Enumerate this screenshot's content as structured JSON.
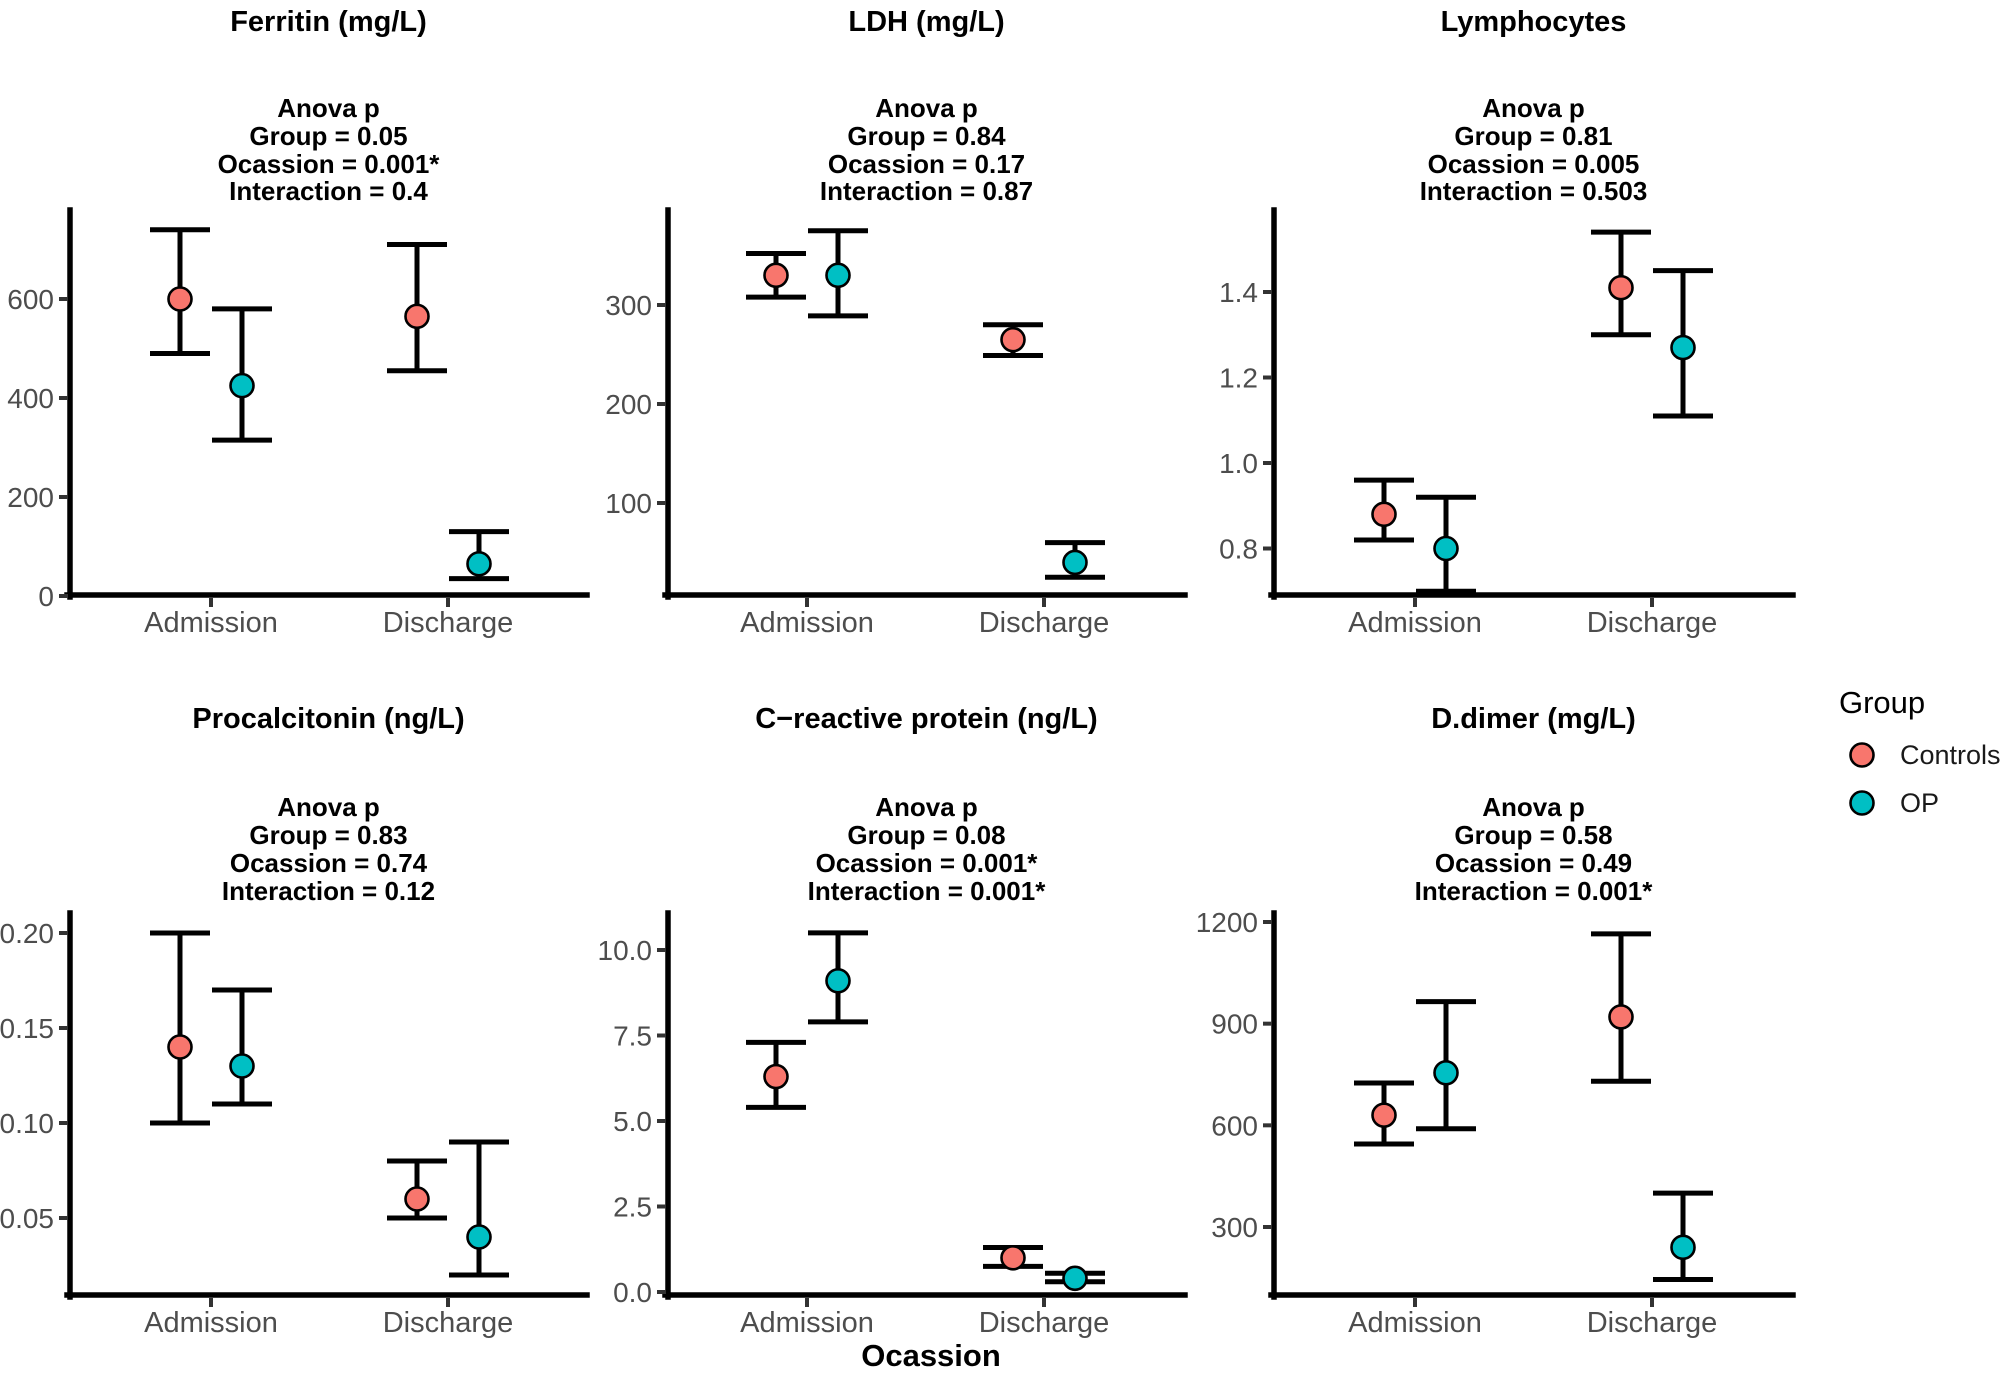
{
  "figure": {
    "background": "#FFFFFF",
    "x_axis_title": "Ocassion",
    "point_outline": "#000000",
    "legend": {
      "title": "Group",
      "position": "right",
      "entries": [
        {
          "label": "Controls",
          "color": "#F8766D"
        },
        {
          "label": "OP",
          "color": "#00BFC4"
        }
      ]
    }
  },
  "chart_data": [
    {
      "type": "scatter",
      "title": "Ferritin (mg/L)",
      "annotation": [
        "Anova p",
        "Group = 0.05",
        "Ocassion = 0.001*",
        "Interaction = 0.4"
      ],
      "categories": [
        "Admission",
        "Discharge"
      ],
      "ytick_labels": [
        "0",
        "200",
        "400",
        "600"
      ],
      "ytick_values": [
        0,
        200,
        400,
        600
      ],
      "ylim": [
        0,
        775
      ],
      "grid": false,
      "series": [
        {
          "name": "Controls",
          "color": "#F8766D",
          "points": [
            {
              "x": "Admission",
              "y": 600,
              "ymin": 490,
              "ymax": 740
            },
            {
              "x": "Discharge",
              "y": 565,
              "ymin": 455,
              "ymax": 710
            }
          ]
        },
        {
          "name": "OP",
          "color": "#00BFC4",
          "points": [
            {
              "x": "Admission",
              "y": 425,
              "ymin": 315,
              "ymax": 580
            },
            {
              "x": "Discharge",
              "y": 65,
              "ymin": 35,
              "ymax": 130
            }
          ]
        }
      ]
    },
    {
      "type": "scatter",
      "title": "LDH (mg/L)",
      "annotation": [
        "Anova p",
        "Group = 0.84",
        "Ocassion = 0.17",
        "Interaction = 0.87"
      ],
      "categories": [
        "Admission",
        "Discharge"
      ],
      "ytick_labels": [
        "100",
        "200",
        "300"
      ],
      "ytick_values": [
        100,
        200,
        300
      ],
      "ylim": [
        7,
        397
      ],
      "grid": false,
      "series": [
        {
          "name": "Controls",
          "color": "#F8766D",
          "points": [
            {
              "x": "Admission",
              "y": 330,
              "ymin": 308,
              "ymax": 352
            },
            {
              "x": "Discharge",
              "y": 265,
              "ymin": 249,
              "ymax": 280
            }
          ]
        },
        {
          "name": "OP",
          "color": "#00BFC4",
          "points": [
            {
              "x": "Admission",
              "y": 330,
              "ymin": 289,
              "ymax": 375
            },
            {
              "x": "Discharge",
              "y": 40,
              "ymin": 25,
              "ymax": 60
            }
          ]
        }
      ]
    },
    {
      "type": "scatter",
      "title": "Lymphocytes",
      "annotation": [
        "Anova p",
        "Group = 0.81",
        "Ocassion = 0.005",
        "Interaction = 0.503"
      ],
      "categories": [
        "Admission",
        "Discharge"
      ],
      "ytick_labels": [
        "0.8",
        "1.0",
        "1.2",
        "1.4"
      ],
      "ytick_values": [
        0.8,
        1.0,
        1.2,
        1.4
      ],
      "ylim": [
        0.69,
        1.59
      ],
      "grid": false,
      "series": [
        {
          "name": "Controls",
          "color": "#F8766D",
          "points": [
            {
              "x": "Admission",
              "y": 0.88,
              "ymin": 0.82,
              "ymax": 0.96
            },
            {
              "x": "Discharge",
              "y": 1.41,
              "ymin": 1.3,
              "ymax": 1.54
            }
          ]
        },
        {
          "name": "OP",
          "color": "#00BFC4",
          "points": [
            {
              "x": "Admission",
              "y": 0.8,
              "ymin": 0.7,
              "ymax": 0.92
            },
            {
              "x": "Discharge",
              "y": 1.27,
              "ymin": 1.11,
              "ymax": 1.45
            }
          ]
        }
      ]
    },
    {
      "type": "scatter",
      "title": "Procalcitonin (ng/L)",
      "annotation": [
        "Anova p",
        "Group = 0.83",
        "Ocassion = 0.74",
        "Interaction = 0.12"
      ],
      "categories": [
        "Admission",
        "Discharge"
      ],
      "ytick_labels": [
        "0.05",
        "0.10",
        "0.15",
        "0.20"
      ],
      "ytick_values": [
        0.05,
        0.1,
        0.15,
        0.2
      ],
      "ylim": [
        0.01,
        0.21
      ],
      "grid": false,
      "series": [
        {
          "name": "Controls",
          "color": "#F8766D",
          "points": [
            {
              "x": "Admission",
              "y": 0.14,
              "ymin": 0.1,
              "ymax": 0.2
            },
            {
              "x": "Discharge",
              "y": 0.06,
              "ymin": 0.05,
              "ymax": 0.08
            }
          ]
        },
        {
          "name": "OP",
          "color": "#00BFC4",
          "points": [
            {
              "x": "Admission",
              "y": 0.13,
              "ymin": 0.11,
              "ymax": 0.17
            },
            {
              "x": "Discharge",
              "y": 0.04,
              "ymin": 0.02,
              "ymax": 0.09
            }
          ]
        }
      ]
    },
    {
      "type": "scatter",
      "title": "C−reactive protein (ng/L)",
      "annotation": [
        "Anova p",
        "Group = 0.08",
        "Ocassion = 0.001*",
        "Interaction = 0.001*"
      ],
      "categories": [
        "Admission",
        "Discharge"
      ],
      "ytick_labels": [
        "0.0",
        "2.5",
        "5.0",
        "7.5",
        "10.0"
      ],
      "ytick_values": [
        0.0,
        2.5,
        5.0,
        7.5,
        10.0
      ],
      "ylim": [
        0,
        11.1
      ],
      "grid": false,
      "series": [
        {
          "name": "Controls",
          "color": "#F8766D",
          "points": [
            {
              "x": "Admission",
              "y": 6.3,
              "ymin": 5.4,
              "ymax": 7.3
            },
            {
              "x": "Discharge",
              "y": 1.0,
              "ymin": 0.75,
              "ymax": 1.3
            }
          ]
        },
        {
          "name": "OP",
          "color": "#00BFC4",
          "points": [
            {
              "x": "Admission",
              "y": 9.1,
              "ymin": 7.9,
              "ymax": 10.5
            },
            {
              "x": "Discharge",
              "y": 0.4,
              "ymin": 0.3,
              "ymax": 0.55
            }
          ]
        }
      ]
    },
    {
      "type": "scatter",
      "title": "D.dimer (mg/L)",
      "annotation": [
        "Anova p",
        "Group = 0.58",
        "Ocassion = 0.49",
        "Interaction = 0.001*"
      ],
      "categories": [
        "Admission",
        "Discharge"
      ],
      "ytick_labels": [
        "300",
        "600",
        "900",
        "1200"
      ],
      "ytick_values": [
        300,
        600,
        900,
        1200
      ],
      "ylim": [
        100,
        1230
      ],
      "grid": false,
      "series": [
        {
          "name": "Controls",
          "color": "#F8766D",
          "points": [
            {
              "x": "Admission",
              "y": 630,
              "ymin": 545,
              "ymax": 725
            },
            {
              "x": "Discharge",
              "y": 920,
              "ymin": 730,
              "ymax": 1165
            }
          ]
        },
        {
          "name": "OP",
          "color": "#00BFC4",
          "points": [
            {
              "x": "Admission",
              "y": 755,
              "ymin": 590,
              "ymax": 965
            },
            {
              "x": "Discharge",
              "y": 240,
              "ymin": 145,
              "ymax": 400
            }
          ]
        }
      ]
    }
  ]
}
